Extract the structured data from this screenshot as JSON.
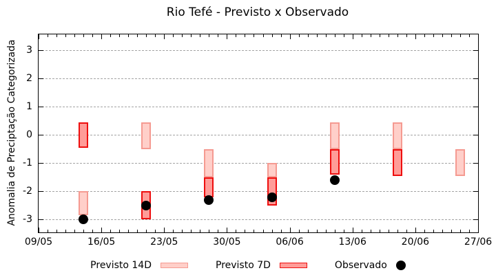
{
  "chart_data": {
    "type": "bar",
    "title": "Rio Tefé - Previsto x Observado",
    "ylabel": "Anomalia de Preciptação Categorizada",
    "ylim": [
      -3.45,
      3.55
    ],
    "yticks": [
      3,
      2,
      1,
      0,
      -1,
      -2,
      -3
    ],
    "grid": "horizontal dotted lines at integer y values",
    "legend_position": "bottom center",
    "x": {
      "tick_labels": [
        "09/05",
        "16/05",
        "23/05",
        "30/05",
        "06/06",
        "13/06",
        "20/06",
        "27/06"
      ],
      "days_total": 49,
      "major_every_days": 7,
      "minor_every_days": 1
    },
    "legend": [
      {
        "label": "Previsto 14D",
        "swatch": "range-bar",
        "series": "previsto_14d"
      },
      {
        "label": "Previsto 7D",
        "swatch": "range-bar",
        "series": "previsto_7d"
      },
      {
        "label": "Observado",
        "swatch": "dot",
        "series": "observado"
      }
    ],
    "series": [
      {
        "id": "previsto_14d",
        "name": "Previsto 14D",
        "style": "range_bar",
        "fill": "#ffcfc9",
        "border": "#f59a91",
        "bars": [
          {
            "date": "14/05",
            "day": 5,
            "from": -2.0,
            "to": -2.85
          },
          {
            "date": "21/05",
            "day": 12,
            "from": 0.45,
            "to": -0.5
          },
          {
            "date": "28/05",
            "day": 19,
            "from": -0.5,
            "to": -1.5
          },
          {
            "date": "04/06",
            "day": 26,
            "from": -1.0,
            "to": -1.5
          },
          {
            "date": "11/06",
            "day": 33,
            "from": 0.45,
            "to": -0.5
          },
          {
            "date": "18/06",
            "day": 40,
            "from": 0.45,
            "to": -0.5
          },
          {
            "date": "25/06",
            "day": 47,
            "from": -0.5,
            "to": -1.45
          }
        ]
      },
      {
        "id": "previsto_7d",
        "name": "Previsto 7D",
        "style": "range_bar",
        "fill": "#ff9c98",
        "border": "#ee0e0e",
        "bars": [
          {
            "date": "14/05",
            "day": 5,
            "from": 0.45,
            "to": -0.45
          },
          {
            "date": "21/05",
            "day": 12,
            "from": -2.0,
            "to": -3.0
          },
          {
            "date": "28/05",
            "day": 19,
            "from": -1.5,
            "to": -2.2
          },
          {
            "date": "04/06",
            "day": 26,
            "from": -1.5,
            "to": -2.5
          },
          {
            "date": "11/06",
            "day": 33,
            "from": -0.5,
            "to": -1.4
          },
          {
            "date": "18/06",
            "day": 40,
            "from": -0.5,
            "to": -1.45
          }
        ]
      },
      {
        "id": "observado",
        "name": "Observado",
        "style": "dot",
        "color": "#000000",
        "points": [
          {
            "date": "14/05",
            "day": 5,
            "value": -3.0
          },
          {
            "date": "21/05",
            "day": 12,
            "value": -2.5
          },
          {
            "date": "28/05",
            "day": 19,
            "value": -2.3
          },
          {
            "date": "04/06",
            "day": 26,
            "value": -2.2
          },
          {
            "date": "11/06",
            "day": 33,
            "value": -1.6
          }
        ]
      }
    ]
  }
}
